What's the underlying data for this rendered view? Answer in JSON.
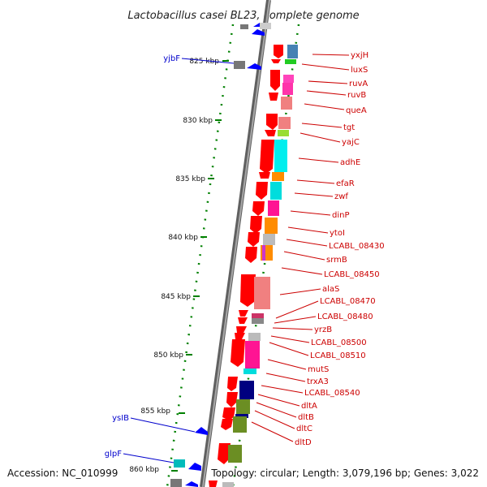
{
  "title": "Lactobacillus casei BL23, complete genome",
  "footer": {
    "accession": "Accession: NC_010999",
    "topology": "Topology: circular; Length: 3,079,196 bp; Genes: 3,022"
  },
  "ticks": [
    "825 kbp",
    "830 kbp",
    "835 kbp",
    "840 kbp",
    "845 kbp",
    "850 kbp",
    "855 kbp",
    "860 kbp"
  ],
  "right_labels": [
    "yxjH",
    "luxS",
    "ruvA",
    "ruvB",
    "queA",
    "tgt",
    "yajC",
    "adhE",
    "efaR",
    "zwf",
    "dinP",
    "ytoI",
    "LCABL_08430",
    "srmB",
    "LCABL_08450",
    "alaS",
    "LCABL_08470",
    "LCABL_08480",
    "yrzB",
    "LCABL_08500",
    "LCABL_08510",
    "mutS",
    "trxA3",
    "LCABL_08540",
    "dltA",
    "dltB",
    "dltC",
    "dltD"
  ],
  "left_labels": [
    "yjbF",
    "ysIB",
    "glpF"
  ],
  "colors": {
    "forward_gene": "#ff0000",
    "reverse_gene": "#0000ff",
    "backbone": "#808080",
    "tick_green": "#008000",
    "right_label": "#cc0000",
    "left_label": "#0000cc"
  }
}
